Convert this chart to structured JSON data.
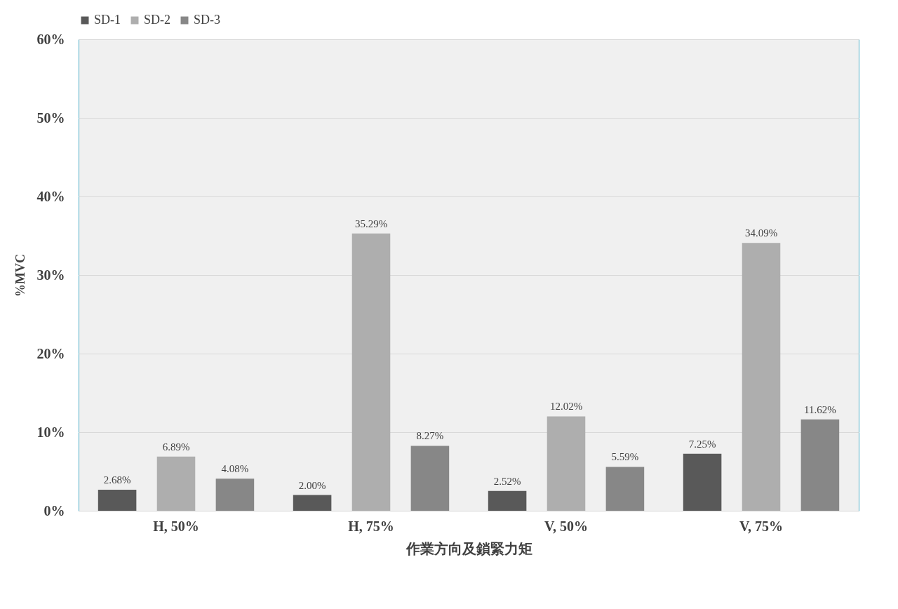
{
  "chart_data": {
    "type": "bar",
    "xlabel": "作業方向及鎖緊力矩",
    "ylabel": "%MVC",
    "categories": [
      "H, 50%",
      "H, 75%",
      "V, 50%",
      "V, 75%"
    ],
    "series": [
      {
        "name": "SD-1",
        "color": "#595959",
        "values": [
          2.68,
          2.0,
          2.52,
          7.25
        ],
        "value_labels": [
          "2.68%",
          "2.00%",
          "2.52%",
          "7.25%"
        ]
      },
      {
        "name": "SD-2",
        "color": "#aeaeae",
        "values": [
          6.89,
          35.29,
          12.02,
          34.09
        ],
        "value_labels": [
          "6.89%",
          "35.29%",
          "12.02%",
          "34.09%"
        ]
      },
      {
        "name": "SD-3",
        "color": "#878787",
        "values": [
          4.08,
          8.27,
          5.59,
          11.62
        ],
        "value_labels": [
          "4.08%",
          "8.27%",
          "5.59%",
          "11.62%"
        ]
      }
    ],
    "ylim": [
      0,
      60
    ],
    "yticks": [
      {
        "value": 0,
        "label": "0%"
      },
      {
        "value": 10,
        "label": "10%"
      },
      {
        "value": 20,
        "label": "20%"
      },
      {
        "value": 30,
        "label": "30%"
      },
      {
        "value": 40,
        "label": "40%"
      },
      {
        "value": 50,
        "label": "50%"
      },
      {
        "value": 60,
        "label": "60%"
      }
    ],
    "grid": "y",
    "legend": "top"
  }
}
